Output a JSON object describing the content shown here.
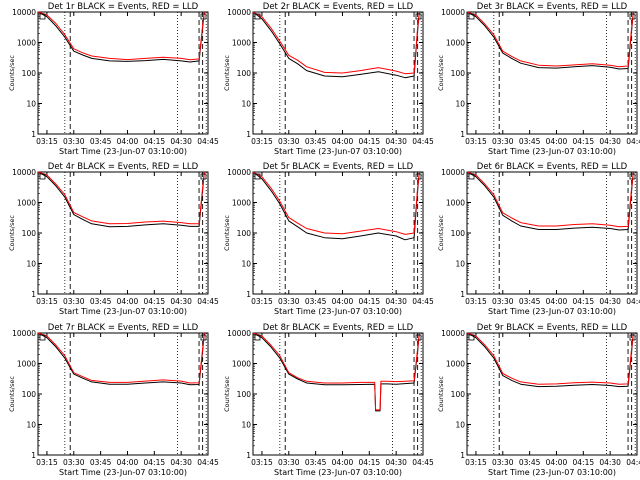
{
  "figure": {
    "xlabel": "Start Time (23-Jun-07 03:10:00)",
    "ylabel": "Counts/sec",
    "legend_text": "BLACK = Events, RED = LLD"
  },
  "chart_data": [
    {
      "type": "line",
      "title": "Det 1r BLACK = Events, RED = LLD",
      "xticks": [
        "03:15",
        "03:30",
        "03:45",
        "04:00",
        "04:15",
        "04:30",
        "04:45"
      ],
      "x_minutes": [
        0,
        5,
        10,
        15,
        20,
        25,
        30,
        40,
        50,
        60,
        70,
        80,
        85,
        90,
        92,
        93
      ],
      "x_range_minutes": [
        0,
        95
      ],
      "y_log": true,
      "ylim": [
        1,
        10000
      ],
      "yticks": [
        "1",
        "10",
        "100",
        "1000",
        "10000"
      ],
      "markers_dotted_minutes": [
        15,
        78,
        94
      ],
      "markers_dashed_minutes": [
        18,
        90,
        92
      ],
      "series": [
        {
          "name": "Events",
          "color": "#000000",
          "values": [
            10000,
            7000,
            3500,
            1500,
            520,
            390,
            300,
            250,
            240,
            255,
            280,
            250,
            230,
            250,
            3000,
            10000
          ]
        },
        {
          "name": "LLD",
          "color": "#ff0000",
          "values": [
            10000,
            8000,
            4200,
            1800,
            620,
            460,
            360,
            300,
            275,
            300,
            330,
            300,
            270,
            290,
            3500,
            10000
          ]
        }
      ]
    },
    {
      "type": "line",
      "title": "Det 2r BLACK = Events, RED = LLD",
      "xticks": [
        "03:15",
        "03:30",
        "03:45",
        "04:00",
        "04:15",
        "04:30",
        "04:45"
      ],
      "x_minutes": [
        0,
        5,
        10,
        15,
        20,
        25,
        30,
        40,
        50,
        60,
        70,
        80,
        85,
        90,
        92,
        93
      ],
      "x_range_minutes": [
        0,
        95
      ],
      "y_log": true,
      "ylim": [
        1,
        10000
      ],
      "yticks": [
        "1",
        "10",
        "100",
        "1000",
        "10000"
      ],
      "markers_dotted_minutes": [
        15,
        78,
        94
      ],
      "markers_dashed_minutes": [
        18,
        90,
        92
      ],
      "series": [
        {
          "name": "Events",
          "color": "#000000",
          "values": [
            10000,
            6000,
            2500,
            900,
            300,
            200,
            120,
            80,
            75,
            90,
            110,
            85,
            70,
            80,
            2500,
            10000
          ]
        },
        {
          "name": "LLD",
          "color": "#ff0000",
          "values": [
            10000,
            7000,
            3000,
            1100,
            380,
            260,
            160,
            105,
            100,
            120,
            150,
            115,
            95,
            100,
            3000,
            10000
          ]
        }
      ]
    },
    {
      "type": "line",
      "title": "Det 3r BLACK = Events, RED = LLD",
      "xticks": [
        "03:15",
        "03:30",
        "03:45",
        "04:00",
        "04:15",
        "04:30",
        "04:45"
      ],
      "x_minutes": [
        0,
        5,
        10,
        15,
        20,
        25,
        30,
        40,
        50,
        60,
        70,
        80,
        85,
        90,
        92,
        93
      ],
      "x_range_minutes": [
        0,
        95
      ],
      "y_log": true,
      "ylim": [
        1,
        10000
      ],
      "yticks": [
        "1",
        "10",
        "100",
        "1000",
        "10000"
      ],
      "markers_dotted_minutes": [
        15,
        78,
        94
      ],
      "markers_dashed_minutes": [
        18,
        90,
        92
      ],
      "series": [
        {
          "name": "Events",
          "color": "#000000",
          "values": [
            10000,
            7000,
            3500,
            1500,
            450,
            300,
            210,
            150,
            145,
            160,
            175,
            155,
            135,
            140,
            2500,
            10000
          ]
        },
        {
          "name": "LLD",
          "color": "#ff0000",
          "values": [
            10000,
            8000,
            4000,
            1800,
            520,
            350,
            250,
            180,
            170,
            185,
            200,
            180,
            160,
            170,
            3000,
            10000
          ]
        }
      ]
    },
    {
      "type": "line",
      "title": "Det 4r BLACK = Events, RED = LLD",
      "xticks": [
        "03:15",
        "03:30",
        "03:45",
        "04:00",
        "04:15",
        "04:30",
        "04:45"
      ],
      "x_minutes": [
        0,
        5,
        10,
        15,
        20,
        25,
        30,
        40,
        50,
        60,
        70,
        80,
        85,
        90,
        92,
        93
      ],
      "x_range_minutes": [
        0,
        95
      ],
      "y_log": true,
      "ylim": [
        1,
        10000
      ],
      "yticks": [
        "1",
        "10",
        "100",
        "1000",
        "10000"
      ],
      "markers_dotted_minutes": [
        15,
        78,
        94
      ],
      "markers_dashed_minutes": [
        18,
        90,
        92
      ],
      "series": [
        {
          "name": "Events",
          "color": "#000000",
          "values": [
            10000,
            7000,
            3500,
            1500,
            400,
            280,
            200,
            160,
            165,
            185,
            200,
            180,
            165,
            165,
            2500,
            10000
          ]
        },
        {
          "name": "LLD",
          "color": "#ff0000",
          "values": [
            10000,
            8000,
            4000,
            1800,
            470,
            340,
            250,
            200,
            205,
            230,
            245,
            220,
            200,
            200,
            3000,
            10000
          ]
        }
      ]
    },
    {
      "type": "line",
      "title": "Det 5r BLACK = Events, RED = LLD",
      "xticks": [
        "03:15",
        "03:30",
        "03:45",
        "04:00",
        "04:15",
        "04:30",
        "04:45"
      ],
      "x_minutes": [
        0,
        5,
        10,
        15,
        20,
        25,
        30,
        40,
        50,
        60,
        70,
        80,
        85,
        90,
        92,
        93
      ],
      "x_range_minutes": [
        0,
        95
      ],
      "y_log": true,
      "ylim": [
        1,
        10000
      ],
      "yticks": [
        "1",
        "10",
        "100",
        "1000",
        "10000"
      ],
      "markers_dotted_minutes": [
        15,
        78,
        94
      ],
      "markers_dashed_minutes": [
        18,
        90,
        92
      ],
      "series": [
        {
          "name": "Events",
          "color": "#000000",
          "values": [
            10000,
            6000,
            2500,
            900,
            250,
            160,
            100,
            70,
            65,
            80,
            100,
            80,
            60,
            70,
            2500,
            10000
          ]
        },
        {
          "name": "LLD",
          "color": "#ff0000",
          "values": [
            10000,
            7000,
            3000,
            1100,
            320,
            210,
            140,
            100,
            95,
            115,
            140,
            110,
            90,
            100,
            3000,
            10000
          ]
        }
      ]
    },
    {
      "type": "line",
      "title": "Det 6r BLACK = Events, RED = LLD",
      "xticks": [
        "03:15",
        "03:30",
        "03:45",
        "04:00",
        "04:15",
        "04:30",
        "04:45"
      ],
      "x_minutes": [
        0,
        5,
        10,
        15,
        20,
        25,
        30,
        40,
        50,
        60,
        70,
        80,
        85,
        90,
        92,
        93
      ],
      "x_range_minutes": [
        0,
        95
      ],
      "y_log": true,
      "ylim": [
        1,
        10000
      ],
      "yticks": [
        "1",
        "10",
        "100",
        "1000",
        "10000"
      ],
      "markers_dotted_minutes": [
        15,
        78,
        94
      ],
      "markers_dashed_minutes": [
        18,
        90,
        92
      ],
      "series": [
        {
          "name": "Events",
          "color": "#000000",
          "values": [
            10000,
            7000,
            3500,
            1500,
            380,
            250,
            170,
            130,
            130,
            145,
            155,
            140,
            125,
            130,
            2500,
            10000
          ]
        },
        {
          "name": "LLD",
          "color": "#ff0000",
          "values": [
            10000,
            8000,
            4000,
            1800,
            460,
            310,
            220,
            170,
            170,
            190,
            200,
            180,
            160,
            165,
            3000,
            10000
          ]
        }
      ]
    },
    {
      "type": "line",
      "title": "Det 7r BLACK = Events, RED = LLD",
      "xticks": [
        "03:15",
        "03:30",
        "03:45",
        "04:00",
        "04:15",
        "04:30",
        "04:45"
      ],
      "x_minutes": [
        0,
        5,
        10,
        15,
        20,
        25,
        30,
        40,
        50,
        60,
        70,
        80,
        85,
        90,
        92,
        93
      ],
      "x_range_minutes": [
        0,
        95
      ],
      "y_log": true,
      "ylim": [
        1,
        10000
      ],
      "yticks": [
        "1",
        "10",
        "100",
        "1000",
        "10000"
      ],
      "markers_dotted_minutes": [
        15,
        78,
        94
      ],
      "markers_dashed_minutes": [
        18,
        90,
        92
      ],
      "series": [
        {
          "name": "Events",
          "color": "#000000",
          "values": [
            10000,
            7000,
            3500,
            1500,
            450,
            330,
            250,
            210,
            210,
            230,
            250,
            230,
            200,
            205,
            2500,
            10000
          ]
        },
        {
          "name": "LLD",
          "color": "#ff0000",
          "values": [
            10000,
            8000,
            4000,
            1800,
            500,
            370,
            280,
            240,
            240,
            265,
            290,
            265,
            230,
            235,
            3000,
            10000
          ]
        }
      ]
    },
    {
      "type": "line",
      "title": "Det 8r BLACK = Events, RED = LLD",
      "xticks": [
        "03:15",
        "03:30",
        "03:45",
        "04:00",
        "04:15",
        "04:30",
        "04:45"
      ],
      "x_minutes": [
        0,
        5,
        10,
        15,
        20,
        25,
        30,
        40,
        50,
        60,
        68,
        68.5,
        71,
        71.5,
        75,
        80,
        85,
        90,
        92,
        93
      ],
      "x_range_minutes": [
        0,
        95
      ],
      "y_log": true,
      "ylim": [
        1,
        10000
      ],
      "yticks": [
        "1",
        "10",
        "100",
        "1000",
        "10000"
      ],
      "markers_dotted_minutes": [
        15,
        78,
        94
      ],
      "markers_dashed_minutes": [
        18,
        90,
        92
      ],
      "series": [
        {
          "name": "Events",
          "color": "#000000",
          "values": [
            10000,
            7000,
            3500,
            1500,
            450,
            310,
            230,
            200,
            200,
            205,
            210,
            28,
            28,
            215,
            215,
            210,
            220,
            230,
            2500,
            10000
          ]
        },
        {
          "name": "LLD",
          "color": "#ff0000",
          "values": [
            10000,
            8000,
            4000,
            1800,
            500,
            340,
            260,
            230,
            230,
            240,
            240,
            30,
            30,
            260,
            260,
            255,
            260,
            270,
            3000,
            10000
          ]
        }
      ]
    },
    {
      "type": "line",
      "title": "Det 9r BLACK = Events, RED = LLD",
      "xticks": [
        "03:15",
        "03:30",
        "03:45",
        "04:00",
        "04:15",
        "04:30",
        "04:45"
      ],
      "x_minutes": [
        0,
        5,
        10,
        15,
        20,
        25,
        30,
        40,
        50,
        60,
        70,
        80,
        85,
        90,
        92,
        93
      ],
      "x_range_minutes": [
        0,
        95
      ],
      "y_log": true,
      "ylim": [
        1,
        10000
      ],
      "yticks": [
        "1",
        "10",
        "100",
        "1000",
        "10000"
      ],
      "markers_dotted_minutes": [
        15,
        78,
        94
      ],
      "markers_dashed_minutes": [
        18,
        90,
        92
      ],
      "series": [
        {
          "name": "Events",
          "color": "#000000",
          "values": [
            10000,
            7000,
            3500,
            1500,
            400,
            280,
            210,
            175,
            180,
            195,
            205,
            190,
            175,
            180,
            2500,
            10000
          ]
        },
        {
          "name": "LLD",
          "color": "#ff0000",
          "values": [
            10000,
            8000,
            4000,
            1800,
            470,
            330,
            250,
            210,
            215,
            235,
            245,
            230,
            210,
            215,
            3000,
            10000
          ]
        }
      ]
    }
  ]
}
